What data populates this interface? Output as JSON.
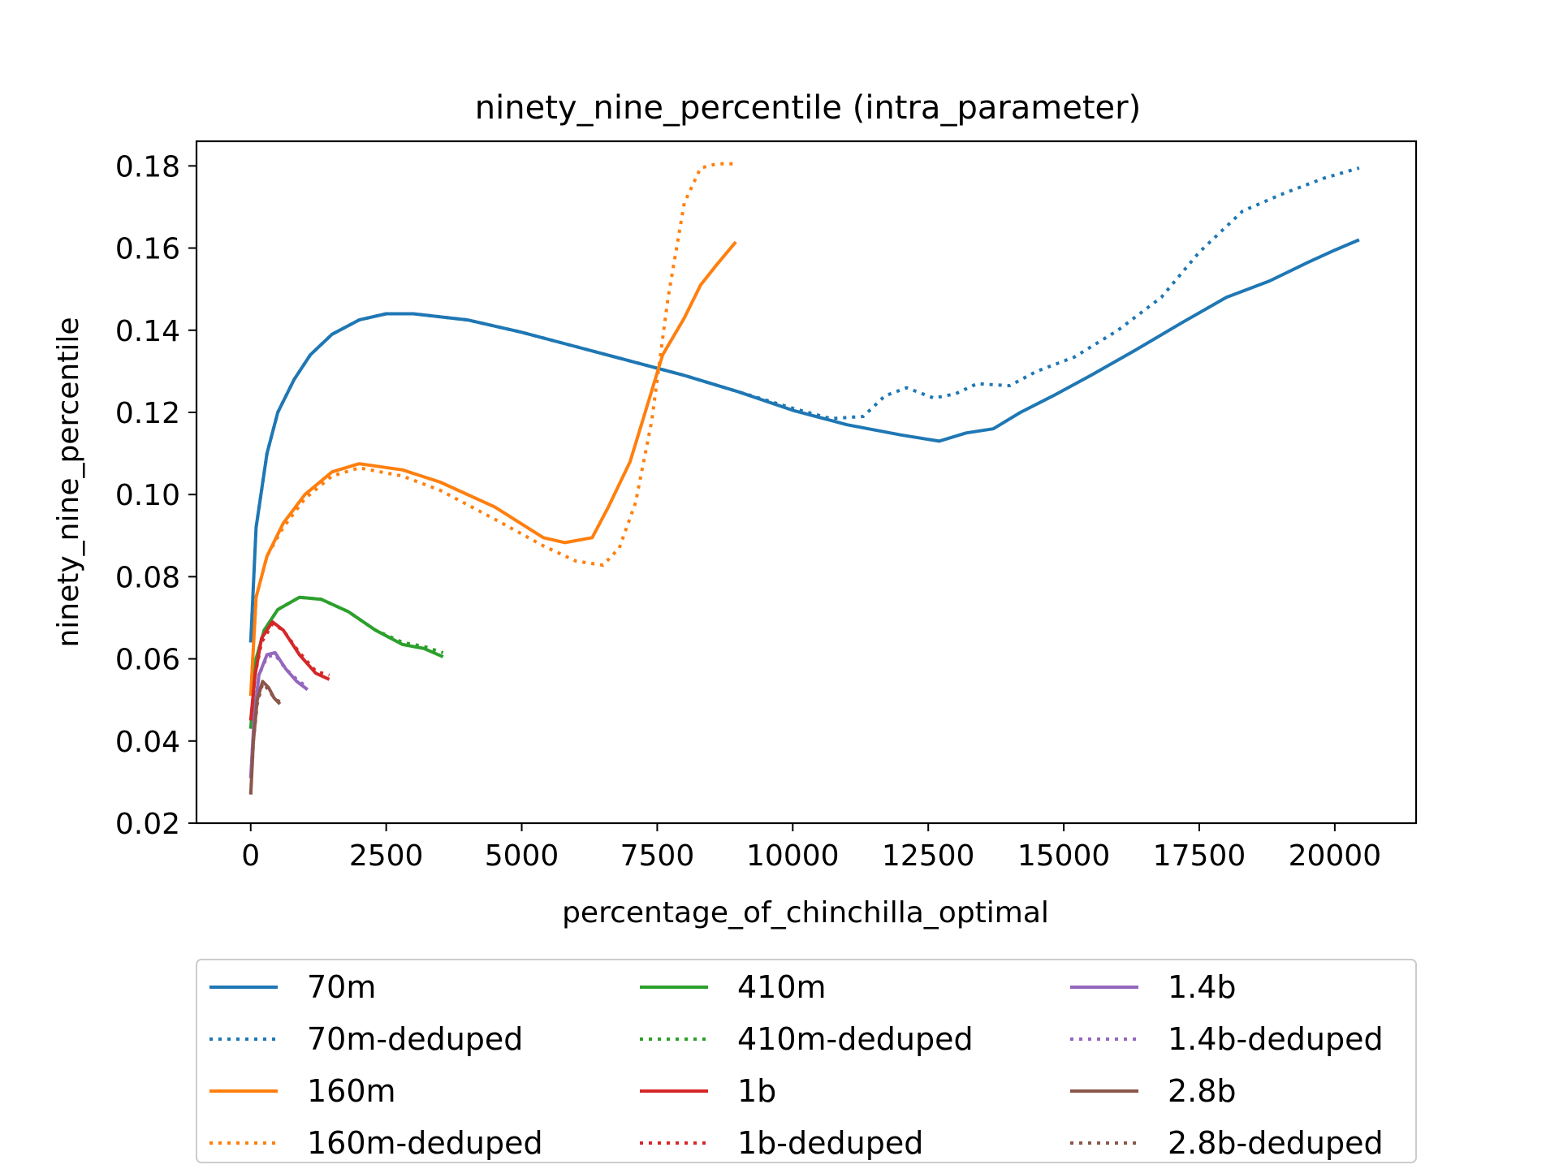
{
  "chart_data": {
    "type": "line",
    "title": "ninety_nine_percentile (intra_parameter)",
    "xlabel": "percentage_of_chinchilla_optimal",
    "ylabel": "ninety_nine_percentile",
    "xlim": [
      -1000,
      21500
    ],
    "ylim": [
      0.02,
      0.186
    ],
    "xticks": [
      0,
      2500,
      5000,
      7500,
      10000,
      12500,
      15000,
      17500,
      20000
    ],
    "yticks": [
      0.02,
      0.04,
      0.06,
      0.08,
      0.1,
      0.12,
      0.14,
      0.16,
      0.18
    ],
    "xtick_labels": [
      "0",
      "2500",
      "5000",
      "7500",
      "10000",
      "12500",
      "15000",
      "17500",
      "20000"
    ],
    "ytick_labels": [
      "0.02",
      "0.04",
      "0.06",
      "0.08",
      "0.10",
      "0.12",
      "0.14",
      "0.16",
      "0.18"
    ],
    "grid": false,
    "legend_position": "below",
    "series": [
      {
        "name": "70m",
        "color": "#1f77b4",
        "style": "solid",
        "points": [
          [
            0,
            0.064
          ],
          [
            100,
            0.092
          ],
          [
            300,
            0.11
          ],
          [
            500,
            0.12
          ],
          [
            800,
            0.128
          ],
          [
            1100,
            0.134
          ],
          [
            1500,
            0.139
          ],
          [
            2000,
            0.1425
          ],
          [
            2500,
            0.144
          ],
          [
            3000,
            0.144
          ],
          [
            4000,
            0.1425
          ],
          [
            5000,
            0.1395
          ],
          [
            6000,
            0.136
          ],
          [
            7000,
            0.1325
          ],
          [
            8000,
            0.129
          ],
          [
            9000,
            0.125
          ],
          [
            10000,
            0.1205
          ],
          [
            11000,
            0.117
          ],
          [
            12000,
            0.1145
          ],
          [
            12700,
            0.113
          ],
          [
            13200,
            0.115
          ],
          [
            13700,
            0.116
          ],
          [
            14200,
            0.12
          ],
          [
            14800,
            0.124
          ],
          [
            15500,
            0.129
          ],
          [
            16300,
            0.135
          ],
          [
            17200,
            0.142
          ],
          [
            18000,
            0.148
          ],
          [
            18800,
            0.152
          ],
          [
            19500,
            0.1565
          ],
          [
            20000,
            0.1595
          ],
          [
            20450,
            0.162
          ]
        ]
      },
      {
        "name": "70m-deduped",
        "color": "#1f77b4",
        "style": "dotted",
        "points": [
          [
            0,
            0.064
          ],
          [
            100,
            0.092
          ],
          [
            300,
            0.11
          ],
          [
            500,
            0.12
          ],
          [
            800,
            0.128
          ],
          [
            1100,
            0.134
          ],
          [
            1500,
            0.139
          ],
          [
            2000,
            0.1425
          ],
          [
            2500,
            0.144
          ],
          [
            3000,
            0.144
          ],
          [
            4000,
            0.1425
          ],
          [
            5000,
            0.1395
          ],
          [
            6000,
            0.136
          ],
          [
            7000,
            0.1325
          ],
          [
            8000,
            0.129
          ],
          [
            9000,
            0.125
          ],
          [
            10000,
            0.121
          ],
          [
            10700,
            0.1185
          ],
          [
            11300,
            0.119
          ],
          [
            11700,
            0.124
          ],
          [
            12100,
            0.126
          ],
          [
            12600,
            0.1235
          ],
          [
            13000,
            0.1245
          ],
          [
            13400,
            0.127
          ],
          [
            14000,
            0.1265
          ],
          [
            14500,
            0.13
          ],
          [
            15200,
            0.1335
          ],
          [
            16000,
            0.14
          ],
          [
            16800,
            0.148
          ],
          [
            17500,
            0.159
          ],
          [
            18300,
            0.169
          ],
          [
            19000,
            0.173
          ],
          [
            19800,
            0.177
          ],
          [
            20450,
            0.1795
          ]
        ]
      },
      {
        "name": "160m",
        "color": "#ff7f0e",
        "style": "solid",
        "points": [
          [
            0,
            0.051
          ],
          [
            100,
            0.075
          ],
          [
            300,
            0.085
          ],
          [
            600,
            0.093
          ],
          [
            1000,
            0.1
          ],
          [
            1500,
            0.1055
          ],
          [
            2000,
            0.1075
          ],
          [
            2800,
            0.106
          ],
          [
            3500,
            0.103
          ],
          [
            4500,
            0.097
          ],
          [
            5400,
            0.0895
          ],
          [
            5800,
            0.0883
          ],
          [
            6300,
            0.0895
          ],
          [
            6600,
            0.097
          ],
          [
            7000,
            0.108
          ],
          [
            7300,
            0.121
          ],
          [
            7600,
            0.134
          ],
          [
            8000,
            0.143
          ],
          [
            8300,
            0.151
          ],
          [
            8600,
            0.156
          ],
          [
            8950,
            0.1615
          ]
        ]
      },
      {
        "name": "160m-deduped",
        "color": "#ff7f0e",
        "style": "dotted",
        "points": [
          [
            0,
            0.051
          ],
          [
            100,
            0.075
          ],
          [
            300,
            0.085
          ],
          [
            600,
            0.092
          ],
          [
            1000,
            0.099
          ],
          [
            1500,
            0.1045
          ],
          [
            2000,
            0.1065
          ],
          [
            2800,
            0.1045
          ],
          [
            3500,
            0.101
          ],
          [
            4500,
            0.094
          ],
          [
            5400,
            0.0875
          ],
          [
            6000,
            0.0838
          ],
          [
            6500,
            0.0828
          ],
          [
            6800,
            0.087
          ],
          [
            7100,
            0.098
          ],
          [
            7400,
            0.118
          ],
          [
            7700,
            0.148
          ],
          [
            8000,
            0.171
          ],
          [
            8300,
            0.1795
          ],
          [
            8600,
            0.1805
          ],
          [
            8950,
            0.1805
          ]
        ]
      },
      {
        "name": "410m",
        "color": "#2ca02c",
        "style": "solid",
        "points": [
          [
            0,
            0.043
          ],
          [
            100,
            0.06
          ],
          [
            250,
            0.067
          ],
          [
            500,
            0.072
          ],
          [
            900,
            0.075
          ],
          [
            1300,
            0.0745
          ],
          [
            1800,
            0.0715
          ],
          [
            2300,
            0.067
          ],
          [
            2800,
            0.0635
          ],
          [
            3200,
            0.0625
          ],
          [
            3550,
            0.0605
          ]
        ]
      },
      {
        "name": "410m-deduped",
        "color": "#2ca02c",
        "style": "dotted",
        "points": [
          [
            0,
            0.043
          ],
          [
            100,
            0.06
          ],
          [
            250,
            0.067
          ],
          [
            500,
            0.072
          ],
          [
            900,
            0.075
          ],
          [
            1300,
            0.0745
          ],
          [
            1800,
            0.0715
          ],
          [
            2300,
            0.067
          ],
          [
            2800,
            0.064
          ],
          [
            3200,
            0.063
          ],
          [
            3550,
            0.0615
          ]
        ]
      },
      {
        "name": "1b",
        "color": "#d62728",
        "style": "solid",
        "points": [
          [
            0,
            0.045
          ],
          [
            80,
            0.056
          ],
          [
            200,
            0.065
          ],
          [
            400,
            0.069
          ],
          [
            600,
            0.067
          ],
          [
            900,
            0.061
          ],
          [
            1200,
            0.0565
          ],
          [
            1450,
            0.055
          ]
        ]
      },
      {
        "name": "1b-deduped",
        "color": "#d62728",
        "style": "dotted",
        "points": [
          [
            0,
            0.045
          ],
          [
            80,
            0.056
          ],
          [
            200,
            0.064
          ],
          [
            400,
            0.0685
          ],
          [
            600,
            0.067
          ],
          [
            900,
            0.0615
          ],
          [
            1200,
            0.057
          ],
          [
            1450,
            0.056
          ]
        ]
      },
      {
        "name": "1.4b",
        "color": "#9467bd",
        "style": "solid",
        "points": [
          [
            0,
            0.031
          ],
          [
            60,
            0.045
          ],
          [
            150,
            0.056
          ],
          [
            300,
            0.061
          ],
          [
            450,
            0.0615
          ],
          [
            650,
            0.0575
          ],
          [
            850,
            0.0545
          ],
          [
            1050,
            0.0525
          ]
        ]
      },
      {
        "name": "1.4b-deduped",
        "color": "#9467bd",
        "style": "dotted",
        "points": [
          [
            0,
            0.031
          ],
          [
            60,
            0.045
          ],
          [
            150,
            0.056
          ],
          [
            300,
            0.0605
          ],
          [
            450,
            0.061
          ],
          [
            650,
            0.0575
          ],
          [
            850,
            0.055
          ],
          [
            1050,
            0.053
          ]
        ]
      },
      {
        "name": "2.8b",
        "color": "#8c564b",
        "style": "solid",
        "points": [
          [
            0,
            0.027
          ],
          [
            50,
            0.04
          ],
          [
            120,
            0.05
          ],
          [
            220,
            0.0545
          ],
          [
            330,
            0.053
          ],
          [
            430,
            0.0505
          ],
          [
            540,
            0.049
          ]
        ]
      },
      {
        "name": "2.8b-deduped",
        "color": "#8c564b",
        "style": "dotted",
        "points": [
          [
            0,
            0.027
          ],
          [
            50,
            0.04
          ],
          [
            120,
            0.049
          ],
          [
            220,
            0.054
          ],
          [
            330,
            0.0525
          ],
          [
            430,
            0.0505
          ],
          [
            540,
            0.0495
          ]
        ]
      }
    ]
  }
}
